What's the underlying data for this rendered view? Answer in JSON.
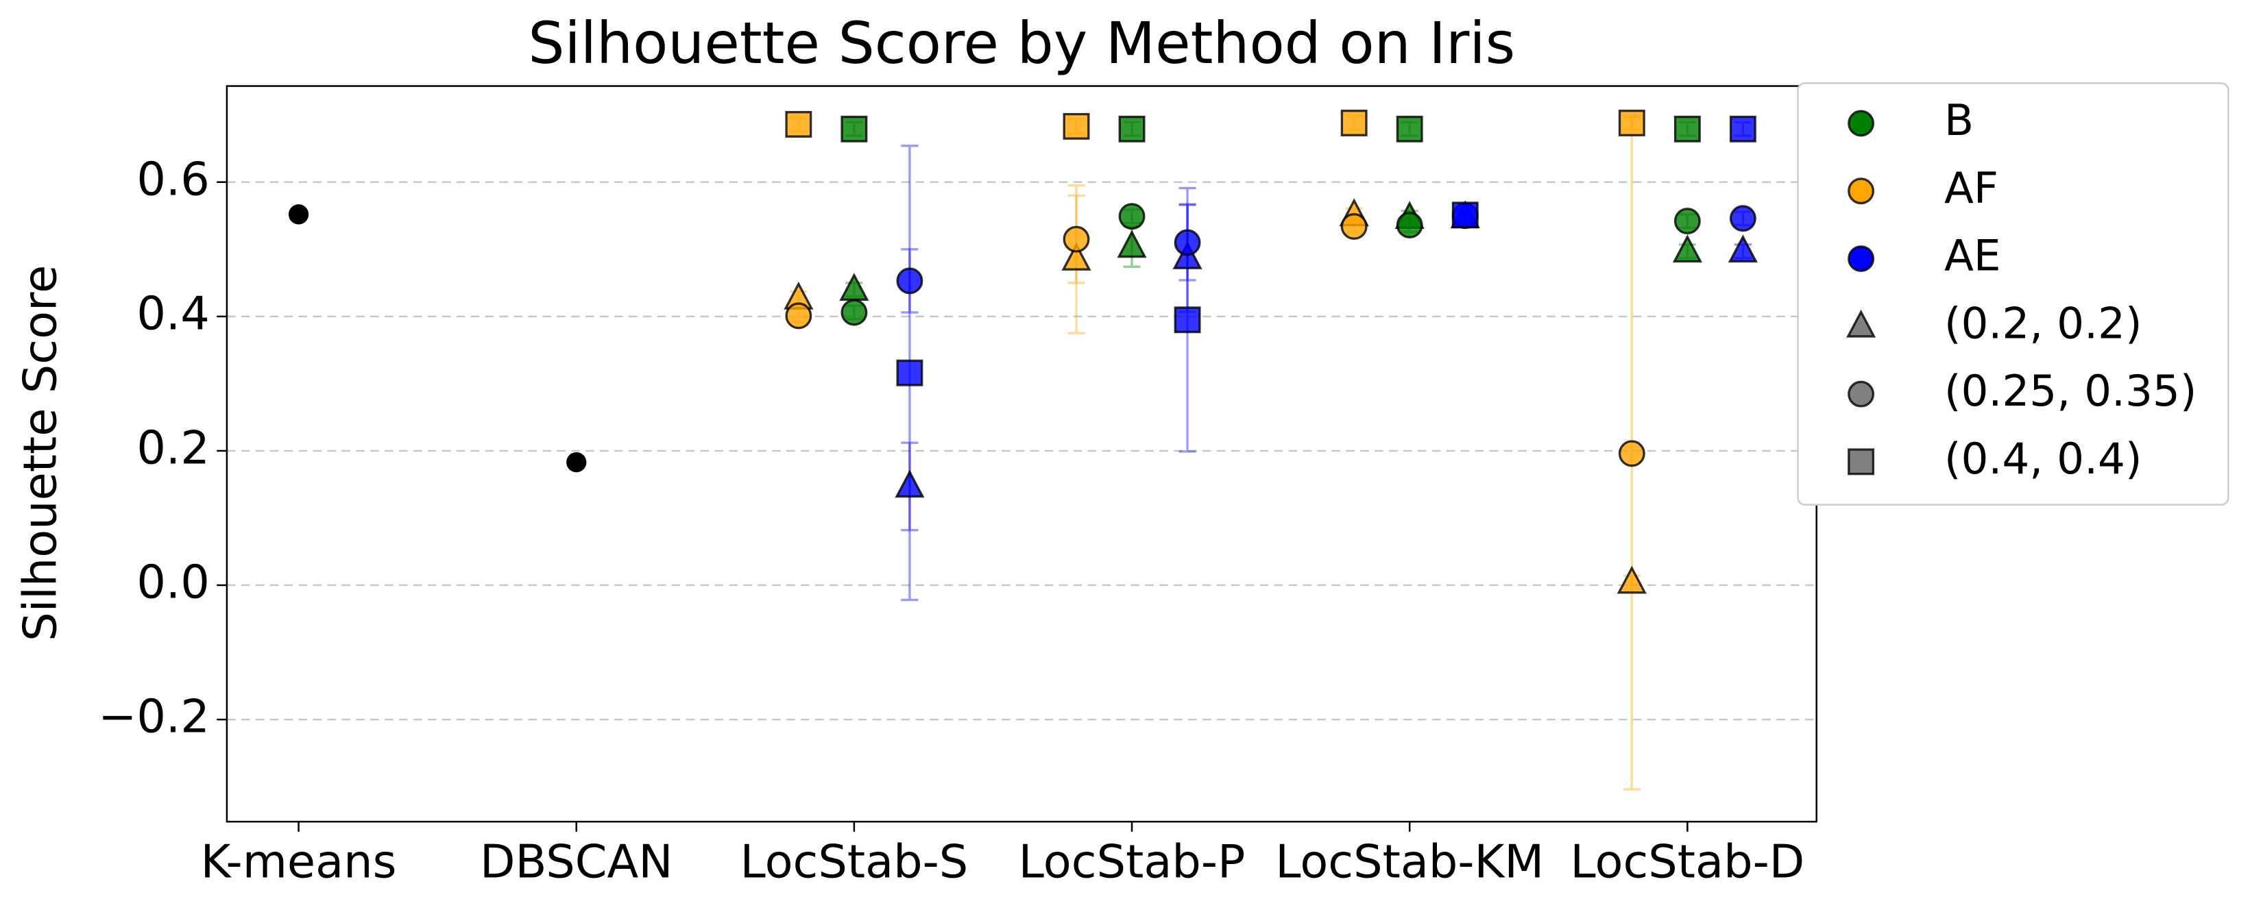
{
  "chart_data": {
    "type": "scatter",
    "title": "Silhouette Score by Method on Iris",
    "ylabel": "Silhouette Score",
    "categories": [
      "K-means",
      "DBSCAN",
      "LocStab-S",
      "LocStab-P",
      "LocStab-KM",
      "LocStab-D"
    ],
    "ylim": [
      -0.352,
      0.743
    ],
    "yticks": [
      {
        "value": -0.2,
        "label": "−0.2"
      },
      {
        "value": 0,
        "label": "0.0"
      },
      0.2,
      0.4,
      0.6
    ],
    "grid": true,
    "legend": "outside upper right",
    "baseline": {
      "color": "#000000",
      "values": [
        0.552,
        0.183,
        null,
        null,
        null,
        null
      ]
    },
    "markers": [
      {
        "name": "(0.2, 0.2)",
        "marker": "triangle"
      },
      {
        "name": "(0.25, 0.35)",
        "marker": "circle"
      },
      {
        "name": "(0.4, 0.4)",
        "marker": "square"
      }
    ],
    "series": [
      {
        "name": "B",
        "color": "#008000",
        "values": [
          [
            null,
            null,
            0.44,
            0.504,
            0.547,
            0.497
          ],
          [
            null,
            null,
            0.406,
            0.549,
            0.536,
            0.542
          ],
          [
            null,
            null,
            0.679,
            0.679,
            0.679,
            0.679
          ]
        ],
        "errors": [
          [
            null,
            null,
            0.01,
            0.03,
            0.01,
            0.01
          ],
          [
            null,
            null,
            0.01,
            0.01,
            0.01,
            0.01
          ],
          [
            null,
            null,
            0.01,
            0.01,
            0.01,
            0.01
          ]
        ]
      },
      {
        "name": "AF",
        "color": "#ffa500",
        "values": [
          [
            null,
            null,
            0.427,
            0.485,
            0.551,
            0.004
          ],
          [
            null,
            null,
            0.401,
            0.515,
            0.534,
            0.196
          ],
          [
            null,
            null,
            0.686,
            0.683,
            0.688,
            0.688
          ]
        ],
        "errors": [
          [
            null,
            null,
            0.01,
            0.11,
            0.01,
            0.01
          ],
          [
            null,
            null,
            0.01,
            0.065,
            0.01,
            0.5
          ],
          [
            null,
            null,
            0.01,
            0.01,
            0.01,
            0.01
          ]
        ]
      },
      {
        "name": "AE",
        "color": "#0000ff",
        "values": [
          [
            null,
            null,
            0.147,
            0.487,
            0.548,
            0.497
          ],
          [
            null,
            null,
            0.453,
            0.51,
            0.55,
            0.546
          ],
          [
            null,
            null,
            0.316,
            0.395,
            0.551,
            0.679
          ]
        ],
        "errors": [
          [
            null,
            null,
            0.065,
            0.08,
            0.01,
            0.01
          ],
          [
            null,
            null,
            0.047,
            0.056,
            0.01,
            0.01
          ],
          [
            null,
            null,
            0.338,
            0.196,
            0.01,
            0.01
          ]
        ]
      }
    ]
  }
}
